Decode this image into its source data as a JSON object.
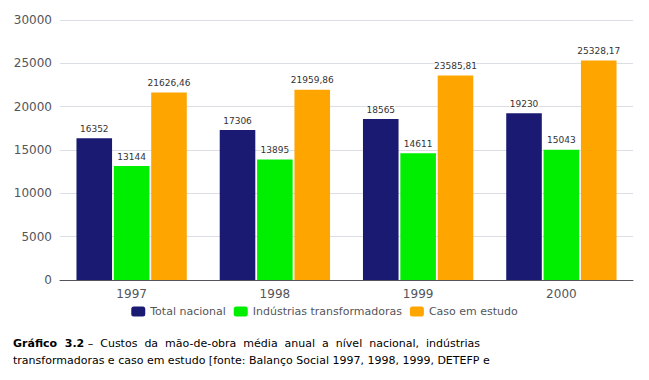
{
  "chart_data": {
    "type": "bar",
    "categories": [
      "1997",
      "1998",
      "1999",
      "2000"
    ],
    "series": [
      {
        "name": "Total nacional",
        "color": "#1a1a72",
        "values": [
          16352,
          17306,
          18565,
          19230
        ]
      },
      {
        "name": "Indústrias transformadoras",
        "color": "#00ee00",
        "values": [
          13144,
          13895,
          14611,
          15043
        ]
      },
      {
        "name": "Caso em estudo",
        "color": "#ffa500",
        "values": [
          21626.46,
          21959.86,
          23585.81,
          25328.17
        ],
        "value_labels": [
          "21626,46",
          "21959,86",
          "23585,81",
          "25328,17"
        ]
      }
    ],
    "ylim": [
      0,
      30000
    ],
    "yticks": [
      0,
      5000,
      10000,
      15000,
      20000,
      25000,
      30000
    ],
    "grid": true,
    "legend": "bottom",
    "data_labels": true,
    "annotations": [
      "Gráfico  3.2",
      "–  Custos  da  mão-de-obra  média  anual  a  nível  nacional,  indústrias",
      "transformadoras e caso em estudo [fonte: Balanço Social 1997, 1998, 1999, DETEFP e"
    ]
  }
}
